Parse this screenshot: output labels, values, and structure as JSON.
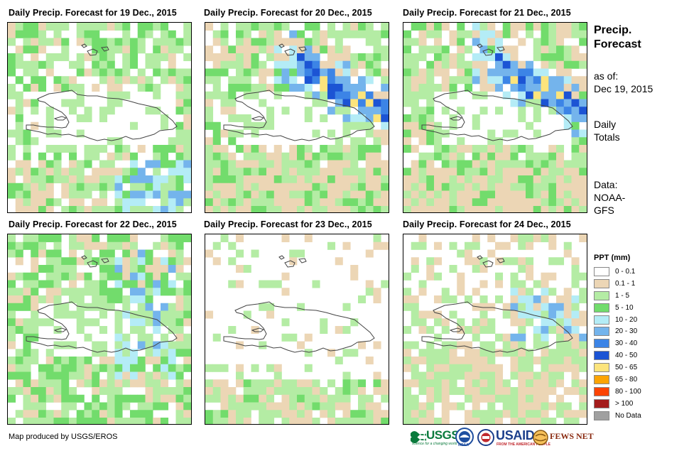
{
  "panels": [
    {
      "title": "Daily Precip. Forecast for 19 Dec., 2015",
      "seed": 11
    },
    {
      "title": "Daily Precip. Forecast for 20 Dec., 2015",
      "seed": 23
    },
    {
      "title": "Daily Precip. Forecast for 21 Dec., 2015",
      "seed": 37
    },
    {
      "title": "Daily Precip. Forecast for 22 Dec., 2015",
      "seed": 41
    },
    {
      "title": "Daily Precip. Forecast for 23 Dec., 2015",
      "seed": 53
    },
    {
      "title": "Daily Precip. Forecast for 24 Dec., 2015",
      "seed": 67
    }
  ],
  "side": {
    "title_line1": "Precip.",
    "title_line2": "Forecast",
    "asof_line1": "as of:",
    "asof_line2": "Dec 19, 2015",
    "daily_line1": "Daily",
    "daily_line2": "Totals",
    "data_line1": "Data:",
    "data_line2": "NOAA-",
    "data_line3": "GFS"
  },
  "legend": {
    "title": "PPT (mm)",
    "items": [
      {
        "label": "0 - 0.1",
        "color": "#ffffff"
      },
      {
        "label": "0.1 - 1",
        "color": "#ecd6b5"
      },
      {
        "label": "1 - 5",
        "color": "#b4eca4"
      },
      {
        "label": "5 - 10",
        "color": "#72dc6c"
      },
      {
        "label": "10 - 20",
        "color": "#b4ecf6"
      },
      {
        "label": "20 - 30",
        "color": "#74b4ec"
      },
      {
        "label": "30 - 40",
        "color": "#3c84e6"
      },
      {
        "label": "40 - 50",
        "color": "#1c54d4"
      },
      {
        "label": "50 - 65",
        "color": "#fce47c"
      },
      {
        "label": "65 - 80",
        "color": "#fca404"
      },
      {
        "label": "80 - 100",
        "color": "#fc4404"
      },
      {
        "label": "> 100",
        "color": "#a41c1c"
      },
      {
        "label": "No Data",
        "color": "#a0a0a0"
      }
    ]
  },
  "footer": {
    "credit": "Map produced by USGS/EROS"
  },
  "logos": {
    "usgs": "USGS",
    "usgs_tagline": "science for a changing world",
    "noaa": "NOAA",
    "usaid": "USAID",
    "usaid_tagline": "FROM THE AMERICAN PEOPLE",
    "fews": "FEWS NET"
  }
}
